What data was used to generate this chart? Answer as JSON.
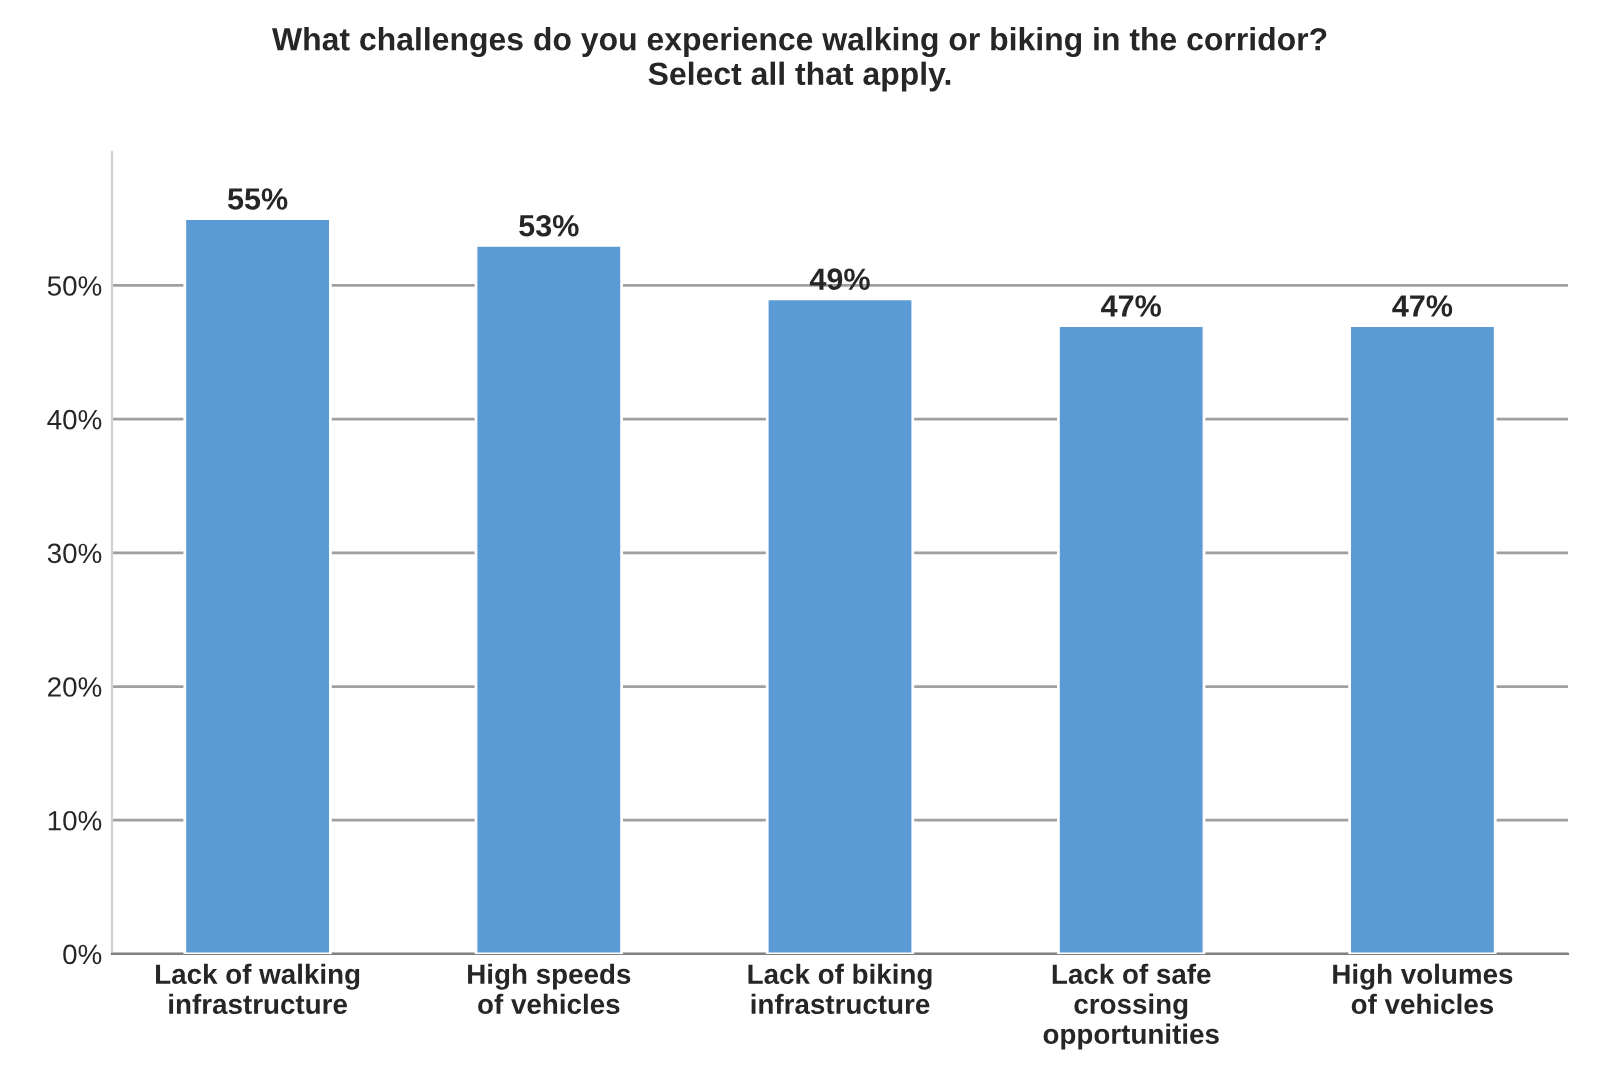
{
  "chart_data": {
    "type": "bar",
    "title": "What challenges do you experience walking or biking in the corridor?\nSelect all that apply.",
    "categories": [
      "Lack of walking\ninfrastructure",
      "High speeds\nof vehicles",
      "Lack of biking\ninfrastructure",
      "Lack of safe\ncrossing\nopportunities",
      "High volumes\nof vehicles"
    ],
    "values": [
      55,
      53,
      49,
      47,
      47
    ],
    "value_labels": [
      "55%",
      "53%",
      "49%",
      "47%",
      "47%"
    ],
    "color": "#5b9bd5",
    "ylim": [
      0,
      60
    ],
    "yticks": [
      {
        "value": 0,
        "label": "0%"
      },
      {
        "value": 10,
        "label": "10%"
      },
      {
        "value": 20,
        "label": "20%"
      },
      {
        "value": 30,
        "label": "30%"
      },
      {
        "value": 40,
        "label": "40%"
      },
      {
        "value": 50,
        "label": "50%"
      }
    ],
    "grid": "y",
    "legend": false
  }
}
